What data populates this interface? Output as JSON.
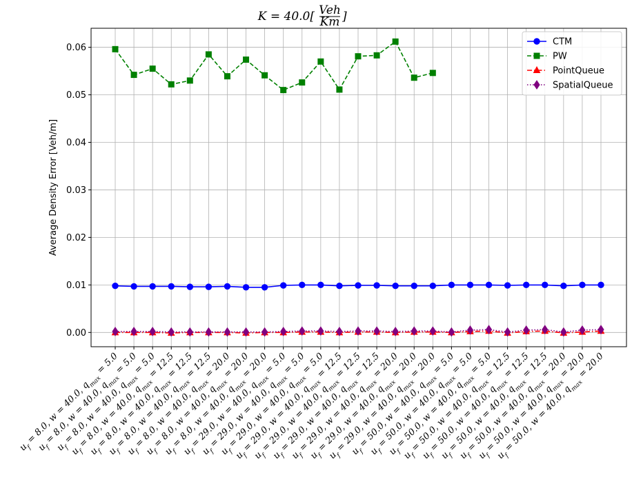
{
  "chart_data": {
    "type": "line",
    "title": "K = 40.0[Veh/Km]",
    "title_parts": {
      "prefix": "K = 40.0[",
      "numerator": "Veh",
      "denominator": "Km",
      "suffix": "]"
    },
    "xlabel": "",
    "ylabel": "Average Density Error [Veh/m]",
    "ylim": [
      -0.003,
      0.064
    ],
    "yticks": [
      0.0,
      0.01,
      0.02,
      0.03,
      0.04,
      0.05,
      0.06
    ],
    "ytick_labels": [
      "0.00",
      "0.01",
      "0.02",
      "0.03",
      "0.04",
      "0.05",
      "0.06"
    ],
    "grid": true,
    "legend_position": "top-right",
    "categories": [
      "u_f = 8.0, w = 40.0, q_max = 5.0",
      "u_f = 8.0, w = 40.0, q_max = 5.0",
      "u_f = 8.0, w = 40.0, q_max = 5.0",
      "u_f = 8.0, w = 40.0, q_max = 12.5",
      "u_f = 8.0, w = 40.0, q_max = 12.5",
      "u_f = 8.0, w = 40.0, q_max = 12.5",
      "u_f = 8.0, w = 40.0, q_max = 20.0",
      "u_f = 8.0, w = 40.0, q_max = 20.0",
      "u_f = 8.0, w = 40.0, q_max = 20.0",
      "u_f = 29.0, w = 40.0, q_max = 5.0",
      "u_f = 29.0, w = 40.0, q_max = 5.0",
      "u_f = 29.0, w = 40.0, q_max = 5.0",
      "u_f = 29.0, w = 40.0, q_max = 12.5",
      "u_f = 29.0, w = 40.0, q_max = 12.5",
      "u_f = 29.0, w = 40.0, q_max = 12.5",
      "u_f = 29.0, w = 40.0, q_max = 20.0",
      "u_f = 29.0, w = 40.0, q_max = 20.0",
      "u_f = 29.0, w = 40.0, q_max = 20.0",
      "u_f = 50.0, w = 40.0, q_max = 5.0",
      "u_f = 50.0, w = 40.0, q_max = 5.0",
      "u_f = 50.0, w = 40.0, q_max = 5.0",
      "u_f = 50.0, w = 40.0, q_max = 12.5",
      "u_f = 50.0, w = 40.0, q_max = 12.5",
      "u_f = 50.0, w = 40.0, q_max = 12.5",
      "u_f = 50.0, w = 40.0, q_max = 20.0",
      "u_f = 50.0, w = 40.0, q_max = 20.0",
      "u_f = 50.0, w = 40.0, q_max = 20.0"
    ],
    "series": [
      {
        "name": "CTM",
        "color": "#0000ff",
        "marker": "circle",
        "line_style": "solid",
        "values": [
          0.0098,
          0.0097,
          0.0097,
          0.0097,
          0.0096,
          0.0096,
          0.0097,
          0.0095,
          0.0095,
          0.0099,
          0.01,
          0.01,
          0.0098,
          0.0099,
          0.0099,
          0.0098,
          0.0098,
          0.0098,
          0.01,
          0.01,
          0.01,
          0.0099,
          0.01,
          0.01,
          0.0098,
          0.01,
          0.01
        ]
      },
      {
        "name": "PW",
        "color": "#008000",
        "marker": "square",
        "line_style": "dashed",
        "values": [
          0.0596,
          0.0542,
          0.0555,
          0.0522,
          0.053,
          0.0585,
          0.0539,
          0.0574,
          0.0541,
          0.051,
          0.0526,
          0.057,
          0.0511,
          0.0581,
          0.0583,
          0.0612,
          0.0536,
          0.0546,
          null,
          null,
          null,
          null,
          null,
          null,
          null,
          null,
          null
        ]
      },
      {
        "name": "PointQueue",
        "color": "#ff0000",
        "marker": "triangle",
        "line_style": "dashdot",
        "values": [
          0.0,
          0.0,
          0.0,
          -0.0001,
          0.0,
          0.0,
          0.0,
          -0.0001,
          0.0,
          0.0,
          0.0001,
          0.0001,
          0.0,
          0.0001,
          0.0001,
          0.0,
          0.0001,
          0.0001,
          0.0,
          0.0002,
          0.0003,
          -0.0001,
          0.0002,
          0.0003,
          -0.0001,
          0.0001,
          0.0003
        ]
      },
      {
        "name": "SpatialQueue",
        "color": "#800080",
        "marker": "diamond",
        "line_style": "dotted",
        "values": [
          0.0002,
          0.0002,
          0.0002,
          0.0001,
          0.0001,
          0.0001,
          0.0001,
          0.0001,
          0.0001,
          0.0002,
          0.0003,
          0.0003,
          0.0002,
          0.0003,
          0.0003,
          0.0002,
          0.0003,
          0.0003,
          0.0001,
          0.0005,
          0.0006,
          0.0001,
          0.0005,
          0.0006,
          0.0001,
          0.0005,
          0.0006
        ]
      }
    ]
  }
}
